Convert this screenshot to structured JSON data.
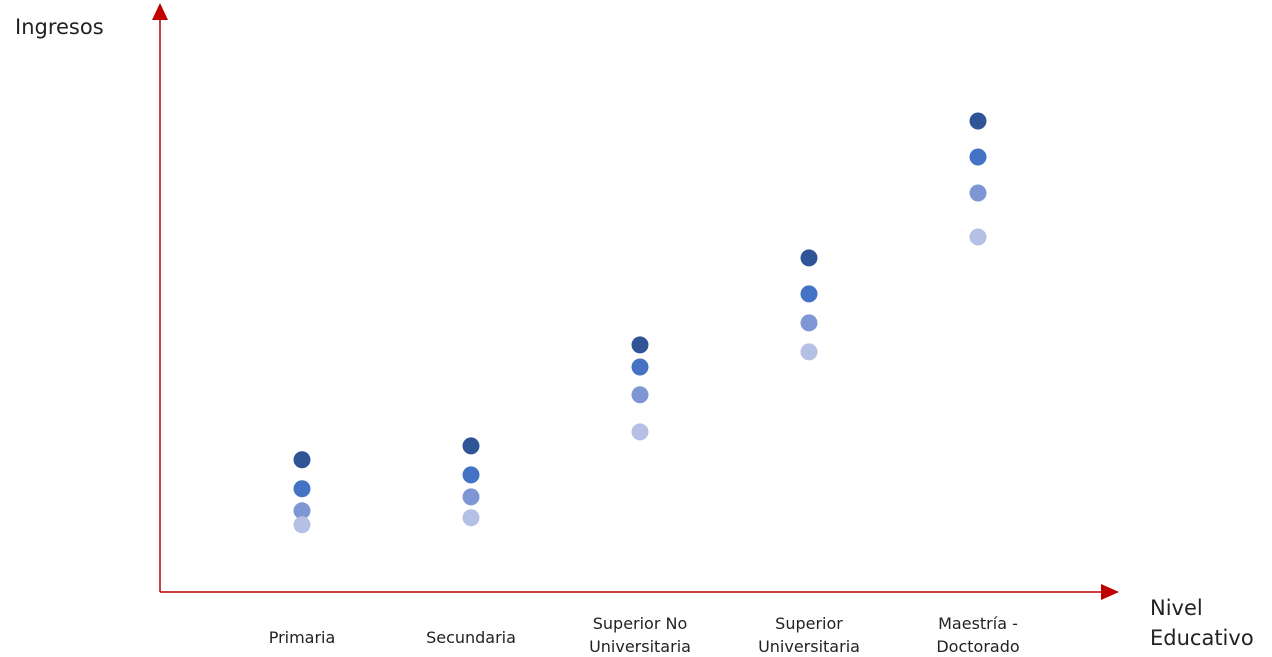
{
  "chart_data": {
    "type": "dot",
    "y_label": "Ingresos",
    "x_label": "Nivel\nEducativo",
    "categories": [
      "Primaria",
      "Secundaria",
      "Superior No\nUniversitaria",
      "Superior\nUniversitaria",
      "Maestría -\nDoctorado"
    ],
    "series": [
      {
        "color": "#2f5597",
        "values": [
          22.8,
          25.2,
          42.6,
          57.6,
          81.2
        ]
      },
      {
        "color": "#4472c4",
        "values": [
          17.8,
          20.2,
          38.8,
          51.4,
          75.0
        ]
      },
      {
        "color": "#7f96d4",
        "values": [
          14.0,
          16.4,
          34.0,
          46.4,
          68.8
        ]
      },
      {
        "color": "#b4c0e4",
        "values": [
          11.6,
          12.8,
          27.6,
          41.4,
          61.2
        ]
      }
    ],
    "ylim": [
      0,
      100
    ],
    "axis_color": "#c00000"
  }
}
